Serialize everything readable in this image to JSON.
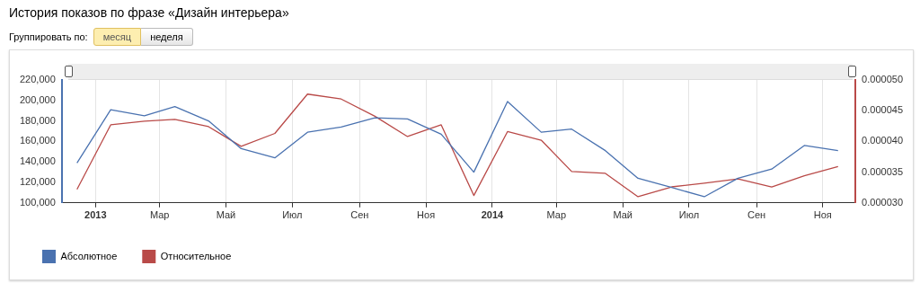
{
  "chart_data": {
    "type": "line",
    "title": "История показов по фразе «Дизайн интерьера»",
    "annotations": [
      "Группировать по:",
      "месяц",
      "неделя"
    ],
    "x": [
      "2012-12-15",
      "2013-01-15",
      "2013-02-15",
      "2013-03-15",
      "2013-04-15",
      "2013-05-15",
      "2013-06-15",
      "2013-07-15",
      "2013-08-15",
      "2013-09-15",
      "2013-10-15",
      "2013-11-15",
      "2013-12-15",
      "2014-01-15",
      "2014-02-15",
      "2014-03-15",
      "2014-04-15",
      "2014-05-15",
      "2014-06-15",
      "2014-07-15",
      "2014-08-15",
      "2014-09-15",
      "2014-10-15",
      "2014-11-15"
    ],
    "series": [
      {
        "name": "Абсолютное",
        "color": "#4a72b0",
        "values": [
          139000,
          191000,
          185000,
          194000,
          180000,
          153000,
          144000,
          169000,
          174000,
          183000,
          182000,
          167000,
          130000,
          199000,
          169000,
          172000,
          151000,
          124000,
          115000,
          106000,
          124000,
          133000,
          156000,
          151000
        ]
      },
      {
        "name": "Относительное",
        "color": "#b94a48",
        "axis": "y2",
        "values": [
          3.22e-05,
          4.27e-05,
          4.33e-05,
          4.36e-05,
          4.24e-05,
          3.92e-05,
          4.13e-05,
          4.77e-05,
          4.69e-05,
          4.41e-05,
          4.08e-05,
          4.27e-05,
          3.12e-05,
          4.16e-05,
          4.02e-05,
          3.51e-05,
          3.48e-05,
          3.1e-05,
          3.26e-05,
          3.32e-05,
          3.39e-05,
          3.26e-05,
          3.44e-05,
          3.59e-05
        ]
      }
    ],
    "xlim": [
      "2012-12-01",
      "2014-12-01"
    ],
    "xticks": [
      {
        "value": "2013-01-01",
        "label": "2013"
      },
      {
        "value": "2013-03-01",
        "label": "Мар"
      },
      {
        "value": "2013-05-01",
        "label": "Май"
      },
      {
        "value": "2013-07-01",
        "label": "Июл"
      },
      {
        "value": "2013-09-01",
        "label": "Сен"
      },
      {
        "value": "2013-11-01",
        "label": "Ноя"
      },
      {
        "value": "2014-01-01",
        "label": "2014"
      },
      {
        "value": "2014-03-01",
        "label": "Мар"
      },
      {
        "value": "2014-05-01",
        "label": "Май"
      },
      {
        "value": "2014-07-01",
        "label": "Июл"
      },
      {
        "value": "2014-09-01",
        "label": "Сен"
      },
      {
        "value": "2014-11-01",
        "label": "Ноя"
      }
    ],
    "ylim": [
      100000,
      220000
    ],
    "yticks": [
      {
        "value": 100000,
        "label": "100,000"
      },
      {
        "value": 120000,
        "label": "120,000"
      },
      {
        "value": 140000,
        "label": "140,000"
      },
      {
        "value": 160000,
        "label": "160,000"
      },
      {
        "value": 180000,
        "label": "180,000"
      },
      {
        "value": 200000,
        "label": "200,000"
      },
      {
        "value": 220000,
        "label": "220,000"
      }
    ],
    "y2lim": [
      3e-05,
      5e-05
    ],
    "y2ticks": [
      {
        "value": 3e-05,
        "label": "0.000030"
      },
      {
        "value": 3.5e-05,
        "label": "0.000035"
      },
      {
        "value": 4e-05,
        "label": "0.000040"
      },
      {
        "value": 4.5e-05,
        "label": "0.000045"
      },
      {
        "value": 5e-05,
        "label": "0.000050"
      }
    ],
    "grid": "x",
    "legend": "bottom left",
    "marker": "none",
    "line_style": "solid"
  }
}
